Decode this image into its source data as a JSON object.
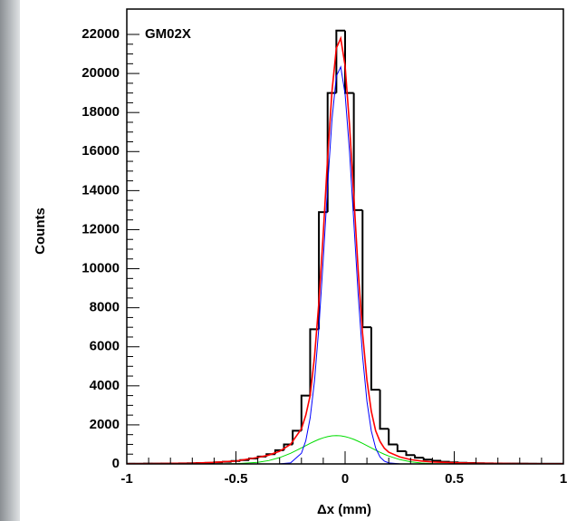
{
  "chart_data": {
    "type": "histogram",
    "title": "GM02X",
    "xlabel": "Δx (mm)",
    "ylabel": "Counts",
    "color": "#000000",
    "bins": [
      -1,
      -0.96,
      -0.92,
      -0.88,
      -0.84,
      -0.8,
      -0.76,
      -0.72,
      -0.68,
      -0.64,
      -0.6,
      -0.56,
      -0.52,
      -0.48,
      -0.44,
      -0.4,
      -0.36,
      -0.32,
      -0.28,
      -0.24,
      -0.2,
      -0.16,
      -0.12,
      -0.08,
      -0.04,
      0,
      0.04,
      0.08,
      0.12,
      0.16,
      0.2,
      0.24,
      0.28,
      0.32,
      0.36,
      0.4,
      0.44,
      0.48,
      0.52,
      0.56,
      0.6,
      0.64,
      0.68,
      0.72,
      0.76,
      0.8,
      0.84,
      0.88,
      0.92,
      0.96,
      1
    ],
    "values": [
      10,
      10,
      15,
      15,
      20,
      25,
      30,
      35,
      45,
      55,
      80,
      110,
      150,
      200,
      280,
      380,
      500,
      700,
      1000,
      1700,
      3500,
      6900,
      12900,
      19000,
      22200,
      19000,
      13000,
      7000,
      3800,
      1800,
      1000,
      650,
      450,
      320,
      220,
      160,
      110,
      80,
      60,
      45,
      35,
      30,
      25,
      20,
      15,
      15,
      10,
      10,
      10,
      10
    ],
    "curves": {
      "x": [
        -1,
        -0.9,
        -0.8,
        -0.7,
        -0.6,
        -0.5,
        -0.4,
        -0.35,
        -0.3,
        -0.25,
        -0.2,
        -0.18,
        -0.16,
        -0.14,
        -0.12,
        -0.1,
        -0.08,
        -0.06,
        -0.04,
        -0.02,
        0,
        0.02,
        0.04,
        0.06,
        0.08,
        0.1,
        0.12,
        0.14,
        0.16,
        0.18,
        0.2,
        0.25,
        0.3,
        0.35,
        0.4,
        0.5,
        0.6,
        0.7,
        0.8,
        0.9,
        1
      ],
      "series": [
        {
          "color": "#00dd00",
          "values": [
            0,
            0,
            0,
            0,
            1,
            13,
            81,
            171,
            323,
            544,
            821,
            938,
            1053,
            1160,
            1258,
            1338,
            1399,
            1437,
            1450,
            1437,
            1399,
            1338,
            1258,
            1160,
            1053,
            938,
            821,
            706,
            596,
            494,
            403,
            224,
            111,
            49,
            20,
            2,
            0,
            0,
            0,
            0,
            0
          ]
        },
        {
          "color": "#0000ff",
          "values": [
            0,
            0,
            0,
            0,
            0,
            0,
            0,
            0,
            3,
            51,
            545,
            1189,
            2360,
            4265,
            7011,
            10483,
            14260,
            17650,
            19863,
            20340,
            18945,
            16054,
            12373,
            8676,
            5532,
            3211,
            1695,
            814,
            355,
            141,
            51,
            3,
            0,
            0,
            0,
            0,
            0,
            0,
            0,
            0,
            0
          ]
        },
        {
          "color": "#ff0000",
          "values": [
            10,
            15,
            25,
            40,
            80,
            150,
            330,
            450,
            650,
            1000,
            1800,
            2500,
            3500,
            5500,
            8300,
            11800,
            15700,
            19100,
            21300,
            21800,
            20400,
            17400,
            13700,
            9900,
            6700,
            4300,
            2700,
            1700,
            1150,
            800,
            600,
            360,
            220,
            150,
            100,
            60,
            40,
            25,
            15,
            10,
            8
          ]
        }
      ]
    },
    "xlim": [
      -1,
      1
    ],
    "xticks": [
      -1,
      -0.5,
      0,
      0.5,
      1
    ],
    "ylim": [
      0,
      23300
    ],
    "yticks": [
      0,
      2000,
      4000,
      6000,
      8000,
      10000,
      12000,
      14000,
      16000,
      18000,
      20000,
      22000
    ]
  }
}
